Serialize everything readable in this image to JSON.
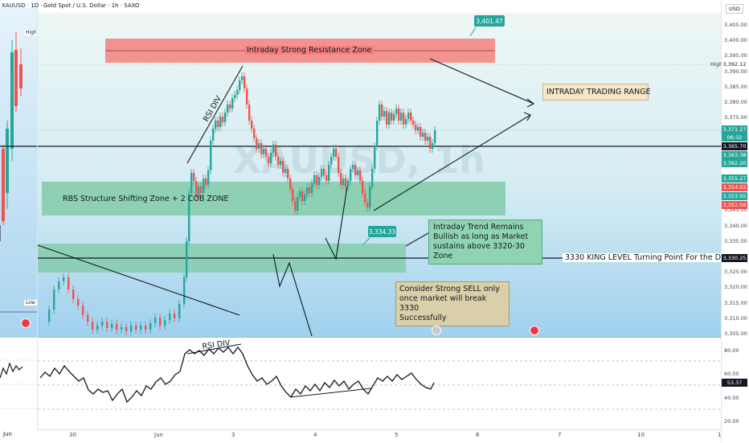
{
  "left_chart": {
    "title": "XAUUSD · 1D ·",
    "high_label": "High",
    "low_label": "Low",
    "date_label": "Jun"
  },
  "header": {
    "title": "Gold Spot / U.S. Dollar · 1h · SAXO",
    "watermark": "XAUUSD, 1h"
  },
  "price_axis": {
    "currency": "USD",
    "ticks": [
      "3,405.00",
      "3,400.00",
      "3,395.00",
      "3,390.00",
      "3,385.00",
      "3,380.00",
      "3,375.00",
      "3,370.00",
      "3,365.00",
      "3,360.00",
      "3,355.00",
      "3,350.00",
      "3,345.00",
      "3,340.00",
      "3,335.00",
      "3,330.00",
      "3,325.00",
      "3,320.00",
      "3,315.00",
      "3,310.00",
      "3,305.00"
    ],
    "high_word": "High",
    "labels": {
      "high": "3,392.12",
      "last": "3,371.27",
      "countdown": "06:32",
      "line": "3,365.70",
      "l1": "3,363.38",
      "l2": "3,362.20",
      "l3": "3,355.27",
      "l4": "3,354.02",
      "l5": "3,353.95",
      "l6": "3,352.06",
      "king": "3,330.25"
    }
  },
  "rsi_axis": {
    "ticks": [
      "80.00",
      "60.00",
      "40.00",
      "20.00"
    ],
    "value": "53.37"
  },
  "time_axis": {
    "labels": [
      "30",
      "Jun",
      "3",
      "4",
      "5",
      "6",
      "7",
      "10",
      "1"
    ]
  },
  "annotations": {
    "resistance_zone": "Intraday Strong Resistance Zone",
    "target_price": "3,401.47",
    "trading_range": "INTRADAY TRADING RANGE",
    "rsi_div_price": "RSI DIV",
    "rsi_div_osc": "RSI DIV",
    "rbs_zone": "RBS Structure Shifting Zone + 2 COB ZONE",
    "support_price": "3,334.33",
    "trend_note": [
      "Intraday Trend Remains",
      "Bullish as long as Market",
      "sustains above 3320-30 Zone"
    ],
    "king_level": "3330 KING LEVEL Turning Point For the Day",
    "sell_note": [
      "Consider Strong SELL only",
      "once market will break 3330",
      "Successfully"
    ]
  },
  "colors": {
    "up": "#26a69a",
    "down": "#ef5350",
    "resistance": "#f4817d",
    "zone": "#7dc9a3",
    "label_box": "#f5e6c8",
    "sky": "#b8dcf2"
  }
}
